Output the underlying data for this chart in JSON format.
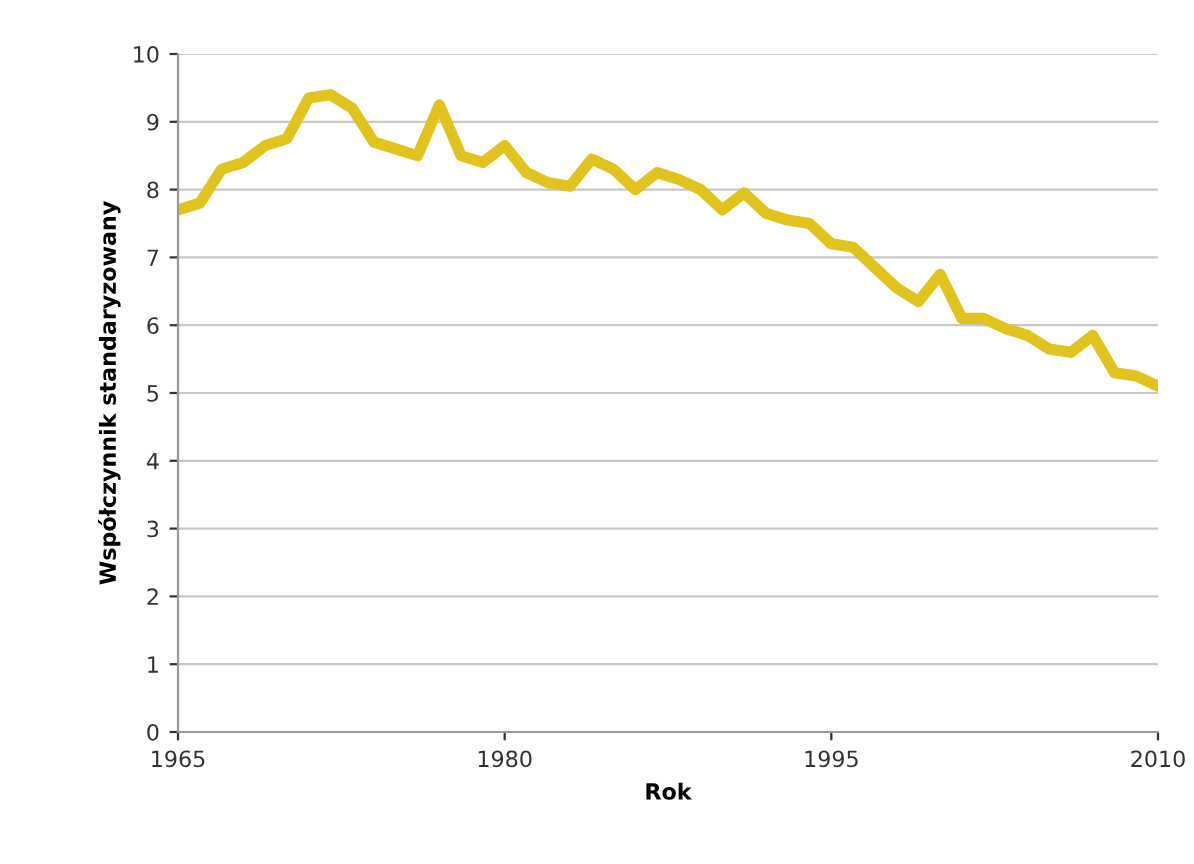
{
  "chart_data": {
    "type": "line",
    "xlabel": "Rok",
    "ylabel": "Współczynnik standaryzowany",
    "x": [
      1965,
      1966,
      1967,
      1968,
      1969,
      1970,
      1971,
      1972,
      1973,
      1974,
      1975,
      1976,
      1977,
      1978,
      1979,
      1980,
      1981,
      1982,
      1983,
      1984,
      1985,
      1986,
      1987,
      1988,
      1989,
      1990,
      1991,
      1992,
      1993,
      1994,
      1995,
      1996,
      1997,
      1998,
      1999,
      2000,
      2001,
      2002,
      2003,
      2004,
      2005,
      2006,
      2007,
      2008,
      2009,
      2010
    ],
    "series": [
      {
        "color": "#e2c21c",
        "values": [
          7.7,
          7.8,
          8.3,
          8.4,
          8.65,
          8.75,
          9.35,
          9.4,
          9.2,
          8.7,
          8.6,
          8.5,
          9.25,
          8.5,
          8.4,
          8.65,
          8.25,
          8.1,
          8.05,
          8.45,
          8.3,
          8.0,
          8.25,
          8.15,
          8.0,
          7.7,
          7.95,
          7.65,
          7.55,
          7.5,
          7.2,
          7.15,
          6.85,
          6.55,
          6.35,
          6.75,
          6.1,
          6.1,
          5.95,
          5.85,
          5.65,
          5.6,
          5.85,
          5.3,
          5.25,
          5.1
        ]
      }
    ],
    "xlim": [
      1965,
      2010
    ],
    "xticks": [
      1965,
      1980,
      1995,
      2010
    ],
    "ylim": [
      0,
      10
    ],
    "yticks": [
      0,
      1,
      2,
      3,
      4,
      5,
      6,
      7,
      8,
      9,
      10
    ],
    "grid": "y",
    "legend": false,
    "marker": "none",
    "line_style": "solid"
  }
}
